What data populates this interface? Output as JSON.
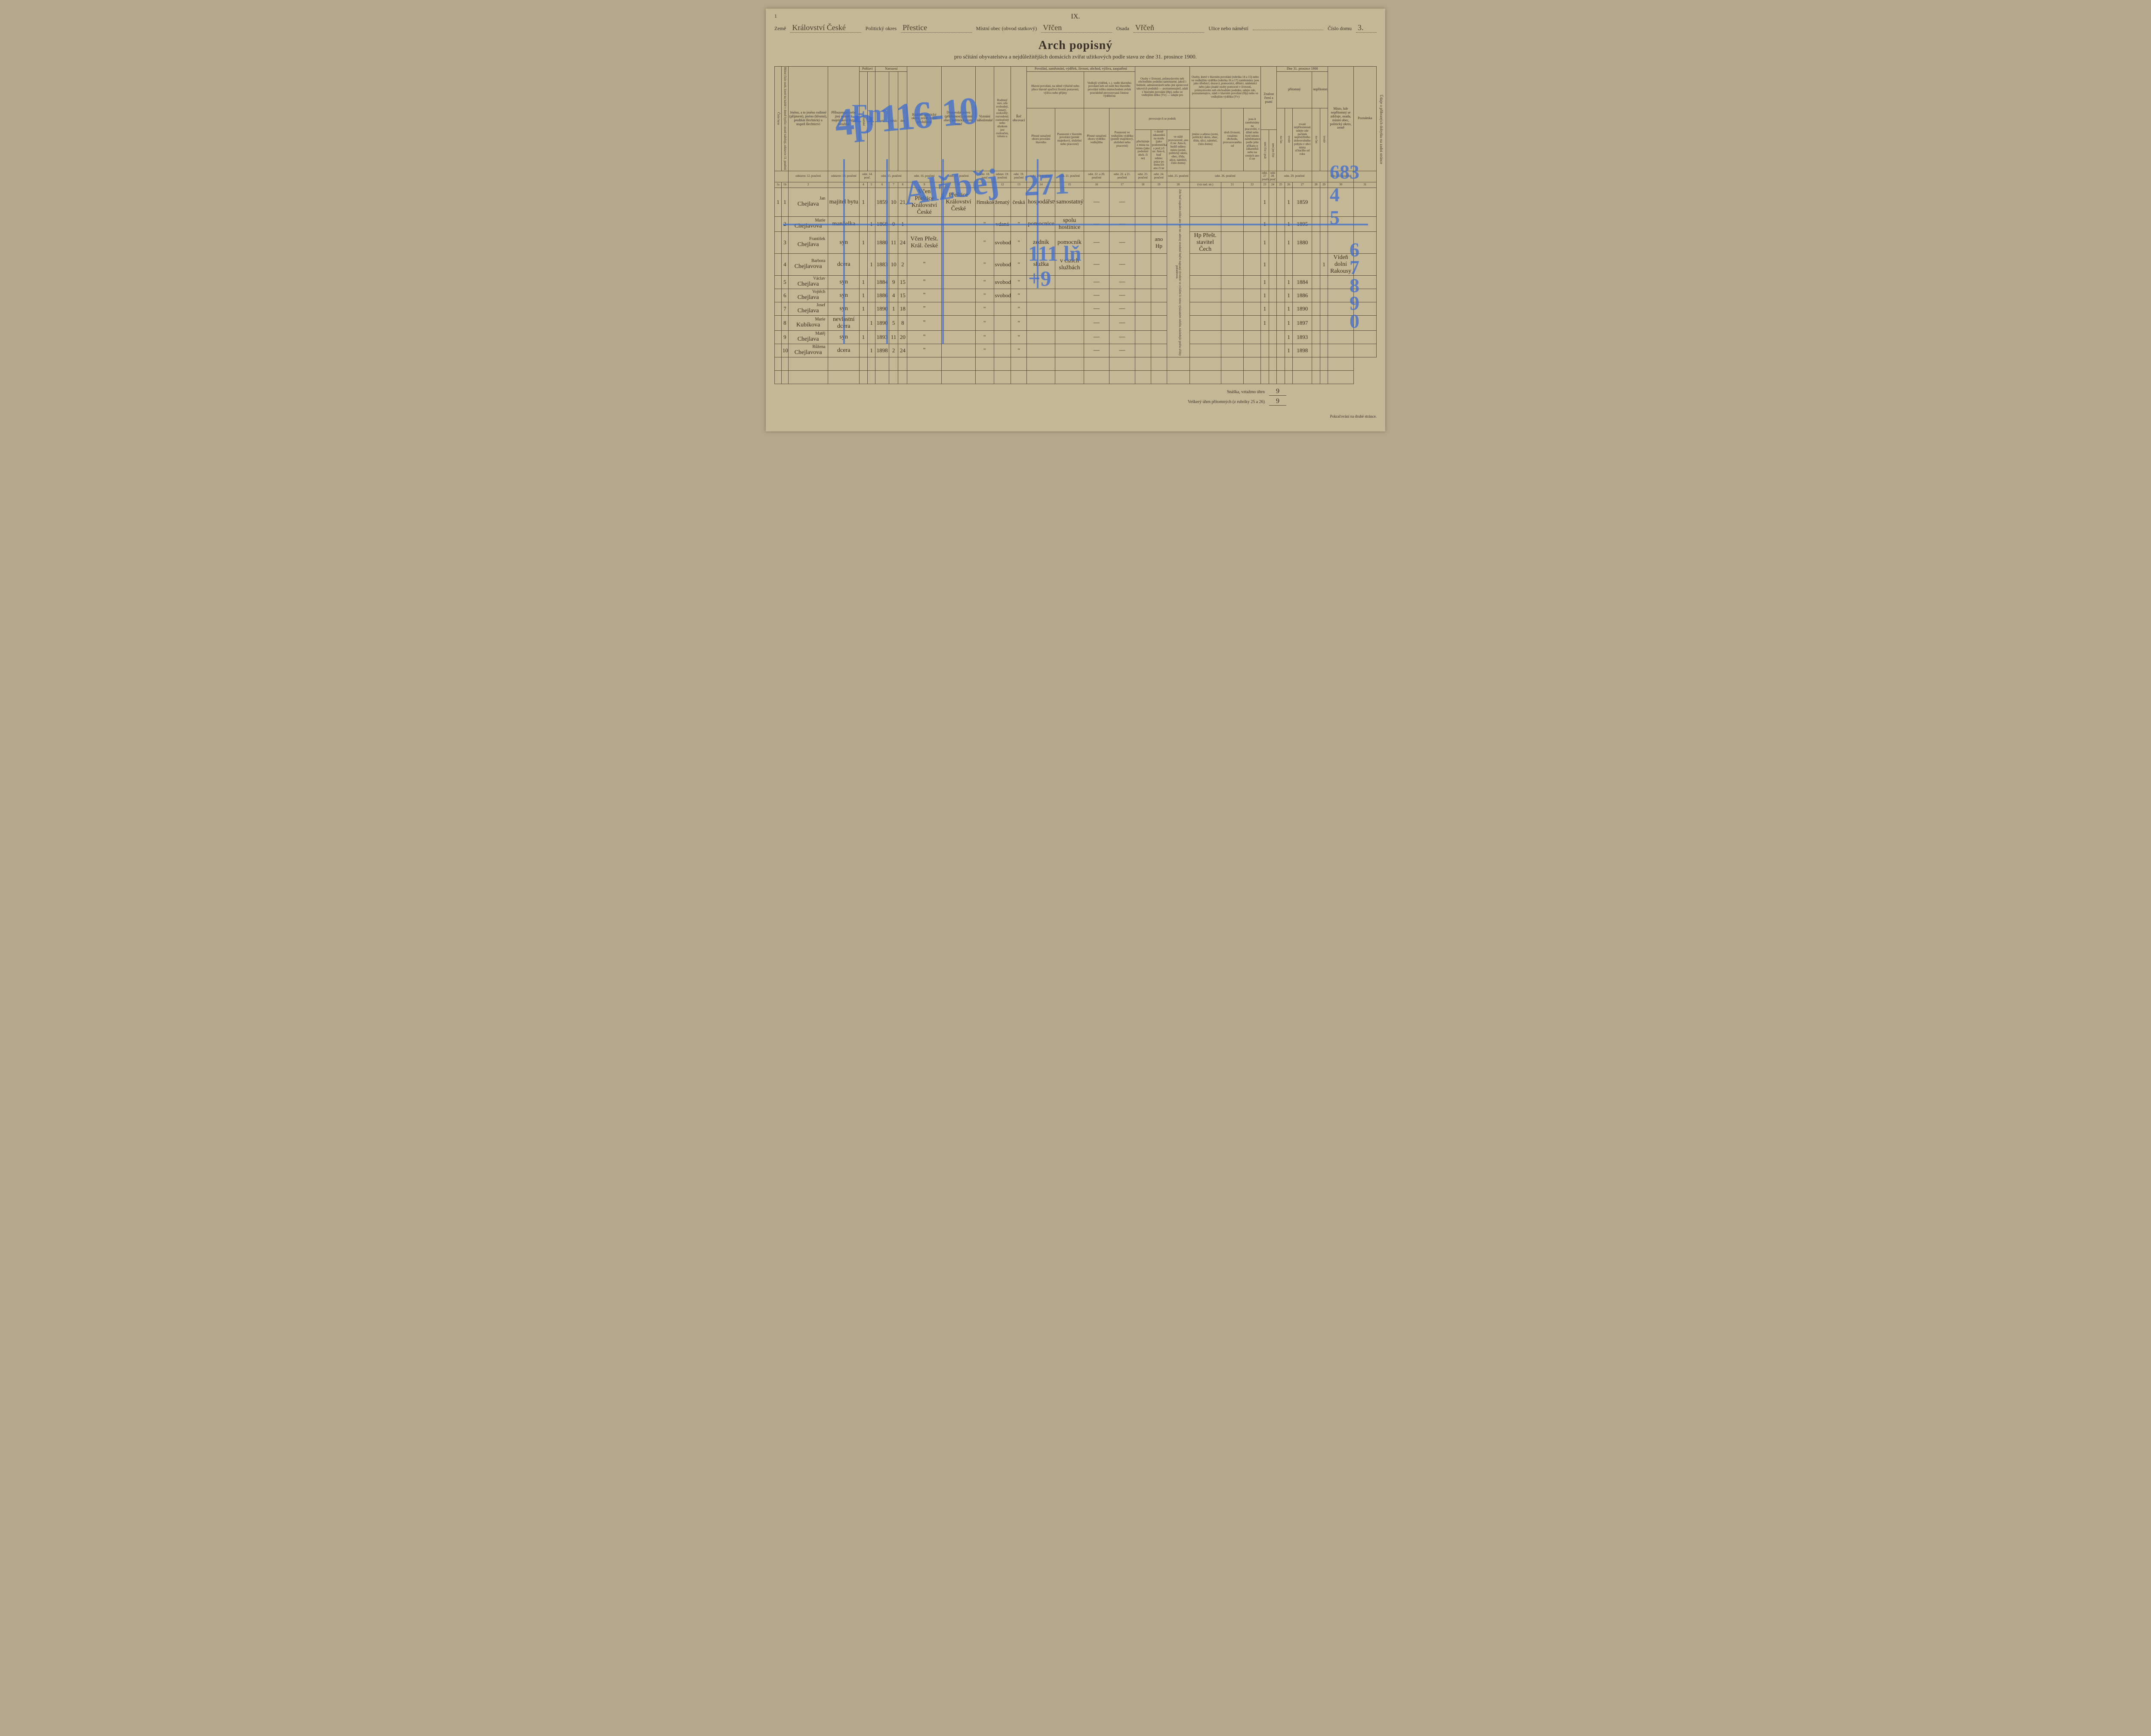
{
  "pageNumber": "1",
  "roman": "IX.",
  "header": {
    "land_label": "Země",
    "land_val": "Království České",
    "district_label": "Politický okres",
    "district_val": "Přestice",
    "municipality_label": "Místní obec (obvod statkový)",
    "municipality_val": "Vřčen",
    "settlement_label": "Osada",
    "settlement_val": "Vřčeň",
    "street_label": "Ulice nebo náměstí",
    "street_val": "",
    "houseno_label": "Číslo domu",
    "houseno_val": "3."
  },
  "title": "Arch popisný",
  "subtitle": "pro sčítání obyvatelstva a nejdůležitějších domácích zvířat užitkových podle stavu ze dne 31. prosince 1900.",
  "groupHeaders": {
    "sex": "Pohlaví",
    "birth": "Narození",
    "marital": "Rodinný stav, zda svobodný, ženatý, ovdovělý; rozvedený; rozloučený nebo sňatkem jest rozloučen, tohoto u",
    "occupation": "Povolání, zaměstnání, výdělek, živnost, obchod, výživa, zaopatření",
    "main_occ": "Hlavní povolání, na němž výlučně nebo přece hlavně spočívá životní postavení, výživa nebo příjmy",
    "side_occ": "Vedlejší výdělek, t. j. vedle hlavního povolání neb od osob bez hlavního povolání toliko mimochodem avšak pravidelně provozovaná činnost výdělečná",
    "business": "Osoby v živnosti, průmyslovém neb obchodním podniku samostatné, jakož i ředitelé, administrátoři nebo jiní správcové takových podniků — poznamenajtež, zdali v hlavním povolání (Hp), nebo ve vedlejším dílku (Vv) — udajte pro",
    "business2": "provozuje-li se podnik",
    "employed": "Osoby, které v hlavním povolání (rubrika 14 a 15) nebo ve vedlejším výdělku (rubrika 16 a 17) zaměstnány jsou jako úředníci, dozorci, pomocníci, dělníci, nádenníci nebo jako jinaké osoby pomocné v živnosti, průmyslovém neb obchodním podniku, udejte zde, poznamenajíce, zdali v hlavním povolání (Hp) nebo ve vedlejším výdělku (Vv)",
    "literacy": "Znalost čtení a psaní",
    "date1900": "Dne 31. prosince 1900",
    "present": "přítomný",
    "absent": "nepřítomný"
  },
  "columns": {
    "c1a": "Číslo bytu",
    "c1b": "Běžné číslo osob, které ku každé v domě bydlící straně náležejí, odstavce 11. poučení",
    "c2": "Jméno, a to jméno rodinné (příjmení), jméno (křestní), predikát šlechtický a stupeň šlechtictví",
    "c3": "Příbuzenství nebo jiný poměr k majetníkovi bytu, vztažmo",
    "c4a": "mužské",
    "c4b": "ženské",
    "c5": "rok",
    "c6": "měsíc",
    "c7": "den",
    "c8": "Rodiště, politický okres, země, státní příslušnost",
    "c9": "Domovské právo (příslušnost), místní obec, politický okres, země",
    "c10": "Vyznání náboženské",
    "c11": "nekatolíků",
    "c12": "Řeč obcovací",
    "c13": "Přesné označení oboru povolání hlavního",
    "c14": "Postavení v hlavním povolání (poměr majetkový, služební nebo pracovní)",
    "c15": "Přesné označení oboru výdělku vedlejšího",
    "c16": "Postavení ve vedlejším výdělku (poměr majetkový, služební nebo pracovní)",
    "c17": "přecházeje z místa na místo (jako podomní obch. či ne)",
    "c18": "v domě zákazníků na mzdu (jako podomníčka a pod.) či ne. Ano-li, buď udáno: práce po domcích ano či ne",
    "c19": "ve stálé provozovně, ano či ne. Ano-li, budiž udáno: místo (země, politický okres, obec, třída, ulice, náměstí, číslo domu)",
    "c20": "jméno a adresu (zemi, politický okres, obec, třídu, ulici, náměstí, číslo domu)",
    "c21": "druh živnosti, vztažmo obchodu, provozovaného od",
    "c22": "jsou-li zaměstnány na pracovišti, v dílně nebo bytě tohoto zaměstnance, podle jeho příkazu u zákazníků nebo na cestách ano či ne",
    "c23": "nynějšího zaměstnavatele (firmy)",
    "c24": "umí číst i psát",
    "c25": "umí jen číst",
    "c26a": "na čas",
    "c26b": "trvale",
    "c27": "trvalé nepřítomnosti udejte zde počátek nepřetržitého dobrovolného pobytu v obci místa sčítacího od roku",
    "c28a": "na čas",
    "c28b": "trvale",
    "c29": "Místo, kde nepřítomný se zdržuje, osada, místní obec, politický okres, země",
    "c30": "Poznámka"
  },
  "instructRow": {
    "c2": "odstavec 12. poučení",
    "c3": "odstavec 13. poučení",
    "c4": "odst. 14. pouč.",
    "c5": "odst. 15. poučení",
    "c8": "odst. 16. poučení",
    "c9": "odst. 17. poučení",
    "c10": "odst. 18. pouč",
    "c11": "odstav. 19. poučení",
    "c12": "odst. 19. poučení",
    "c13": "odst. 20. poučení",
    "c14": "odst. 21. poučení",
    "c15": "odst. 22. a 20. poučení",
    "c16": "odst. 22. a 21. poučení",
    "c17": "odst. 23. poučení",
    "c18": "odst. 24. poučení",
    "c19": "odst. 25. poučení",
    "c20": "odst. 26. poučení",
    "c24": "odst. 27 poučení",
    "c25": "odst 28. pouč.",
    "c26": "odst. 29. poučení",
    "c29": "odst. 30. poučení"
  },
  "colnums": [
    "1a",
    "1b",
    "2",
    "3",
    "4",
    "5",
    "6",
    "7",
    "8",
    "9",
    "10",
    "11",
    "12",
    "13",
    "14",
    "15",
    "16",
    "17",
    "18",
    "19",
    "20",
    "(viz nad. str.)",
    "21",
    "22",
    "23",
    "24",
    "25",
    "26",
    "27",
    "28",
    "29",
    "30",
    "31"
  ],
  "rows": [
    {
      "n": "1",
      "name_top": "Jan",
      "name": "Chejlava",
      "rel": "majitel bytu",
      "m": "1",
      "f": "",
      "yr": "1859",
      "mo": "10",
      "dy": "21",
      "birthplace": "Včen Přeštice Království České",
      "domicile": "Přeštice Království České",
      "relig": "římskokatolické",
      "marit": "ženatý",
      "lang": "česká",
      "occ": "hospodářství",
      "pos": "samostatný",
      "lit": "1",
      "pres": "1",
      "since": "1859"
    },
    {
      "n": "2",
      "name_top": "Marie",
      "name": "Chejlavova",
      "rel": "manželka",
      "m": "",
      "f": "1",
      "yr": "1868",
      "mo": "0",
      "dy": "1",
      "birthplace": "",
      "domicile": "",
      "relig": "\"",
      "marit": "vdaná",
      "lang": "\"",
      "occ": "pomocnice",
      "pos": "spolu hostinice",
      "lit": "1",
      "pres": "1",
      "since": "1895"
    },
    {
      "n": "3",
      "name_top": "František",
      "name": "Chejlava",
      "rel": "syn",
      "m": "1",
      "f": "",
      "yr": "1880",
      "mo": "11",
      "dy": "24",
      "birthplace": "Včen Přešt. Král. české",
      "domicile": "",
      "relig": "\"",
      "marit": "svobodný",
      "lang": "\"",
      "occ": "zedník",
      "pos": "pomocník",
      "side": "ano Hp",
      "emp": "Hp Přešt. stavitel Čech",
      "lit": "1",
      "pres": "1",
      "since": "1880"
    },
    {
      "n": "4",
      "name_top": "Barbora",
      "name": "Chejlavova",
      "rel": "dcera",
      "m": "",
      "f": "1",
      "yr": "1883",
      "mo": "10",
      "dy": "2",
      "birthplace": "\"",
      "domicile": "",
      "relig": "\"",
      "marit": "svobodná",
      "lang": "\"",
      "occ": "služka",
      "pos": "v cizích službách",
      "lit": "1",
      "pres": "",
      "abs": "1",
      "where": "Vídeň dolní Rakousy"
    },
    {
      "n": "5",
      "name_top": "Václav",
      "name": "Chejlava",
      "rel": "syn",
      "m": "1",
      "f": "",
      "yr": "1884",
      "mo": "9",
      "dy": "15",
      "birthplace": "\"",
      "domicile": "",
      "relig": "\"",
      "marit": "svobodný",
      "lang": "\"",
      "occ": "",
      "pos": "",
      "lit": "1",
      "pres": "1",
      "since": "1884"
    },
    {
      "n": "6",
      "name_top": "Vojtěch",
      "name": "Chejlava",
      "rel": "syn",
      "m": "1",
      "f": "",
      "yr": "1886",
      "mo": "4",
      "dy": "15",
      "birthplace": "\"",
      "domicile": "",
      "relig": "\"",
      "marit": "svobodný",
      "lang": "\"",
      "occ": "",
      "pos": "",
      "lit": "1",
      "pres": "1",
      "since": "1886"
    },
    {
      "n": "7",
      "name_top": "Josef",
      "name": "Chejlava",
      "rel": "syn",
      "m": "1",
      "f": "",
      "yr": "1890",
      "mo": "1",
      "dy": "18",
      "birthplace": "\"",
      "domicile": "",
      "relig": "\"",
      "marit": "",
      "lang": "\"",
      "occ": "",
      "pos": "",
      "lit": "1",
      "pres": "1",
      "since": "1890"
    },
    {
      "n": "8",
      "name_top": "Marie",
      "name": "Kubíkova",
      "rel": "nevlastní dcera",
      "m": "",
      "f": "1",
      "yr": "1890",
      "mo": "5",
      "dy": "8",
      "birthplace": "\"",
      "domicile": "",
      "relig": "\"",
      "marit": "",
      "lang": "\"",
      "occ": "",
      "pos": "",
      "lit": "1",
      "pres": "1",
      "since": "1897"
    },
    {
      "n": "9",
      "name_top": "Matěj",
      "name": "Chejlava",
      "rel": "syn",
      "m": "1",
      "f": "",
      "yr": "1893",
      "mo": "11",
      "dy": "20",
      "birthplace": "\"",
      "domicile": "",
      "relig": "\"",
      "marit": "",
      "lang": "\"",
      "occ": "",
      "pos": "",
      "lit": "",
      "pres": "1",
      "since": "1893"
    },
    {
      "n": "10",
      "name_top": "Růžena",
      "name": "Chejlavova",
      "rel": "dcera",
      "m": "",
      "f": "1",
      "yr": "1898",
      "mo": "2",
      "dy": "24",
      "birthplace": "\"",
      "domicile": "",
      "relig": "\"",
      "marit": "",
      "lang": "\"",
      "occ": "",
      "pos": "",
      "lit": "",
      "pres": "1",
      "since": "1898"
    }
  ],
  "footer": {
    "snaska_label": "Snáška, vztažmo úhrn",
    "snaska_val": "9",
    "total_label": "Veškerý úhrn přítomných (z rubriky 25 a 26)",
    "total_val": "9",
    "continue": "Pokračování na druhé stránce."
  },
  "sideNote": "Údaje o přibraných dobytku na zadní stránce",
  "overlay": {
    "big": "4p 116-10",
    "mid": "271",
    "right1": "683\n4\n5",
    "right2": "6\n7\n8\n9\n0",
    "alt": "Alžběj",
    "extra": "111 lň\n+9",
    "fm": "Fm"
  }
}
